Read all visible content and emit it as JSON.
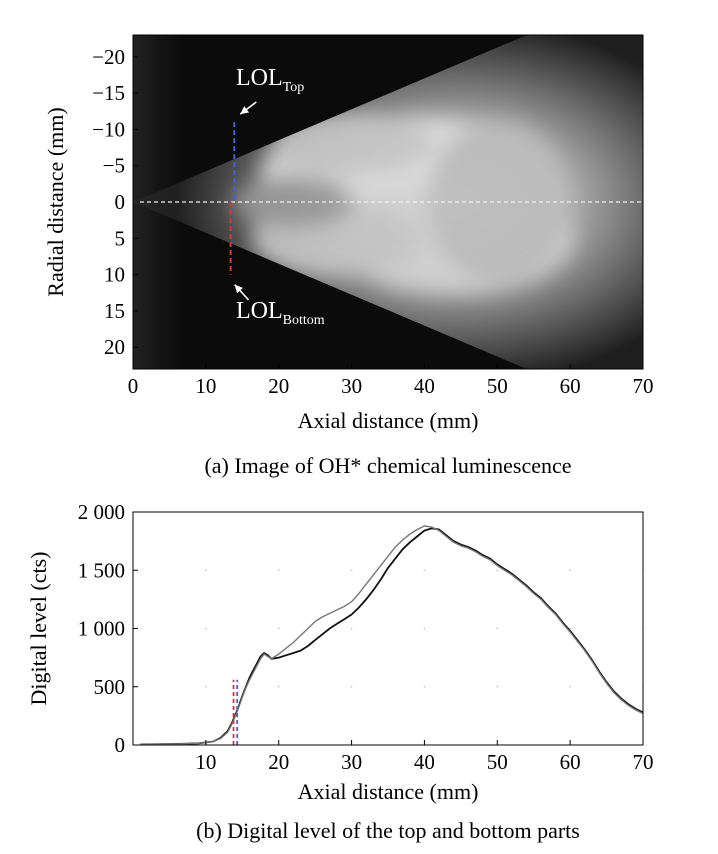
{
  "chart_data": [
    {
      "type": "heatmap",
      "caption": "(a) Image of OH* chemical luminescence",
      "xlabel": "Axial distance (mm)",
      "ylabel": "Radial distance (mm)",
      "xlim": [
        0,
        70
      ],
      "ylim": [
        -23,
        23
      ],
      "y_inverted": true,
      "xticks": [
        "0",
        "10",
        "20",
        "30",
        "40",
        "50",
        "60",
        "70"
      ],
      "yticks": [
        "−20",
        "−15",
        "−10",
        "−5",
        "0",
        "5",
        "10",
        "15",
        "20"
      ],
      "xtick_values": [
        0,
        10,
        20,
        30,
        40,
        50,
        60,
        70
      ],
      "ytick_values": [
        -20,
        -15,
        -10,
        -5,
        0,
        5,
        10,
        15,
        20
      ],
      "spray_cone_edges": {
        "top": [
          [
            0,
            0
          ],
          [
            54,
            -23
          ],
          [
            70,
            -23
          ]
        ],
        "bottom": [
          [
            0,
            0
          ],
          [
            54,
            23
          ],
          [
            70,
            23
          ]
        ]
      },
      "centerline_y": 0,
      "annotations": [
        {
          "label": "LOL",
          "subscript": "Top",
          "x": 13.9,
          "y_from": -11,
          "y_to": 0,
          "color": "#4b5cd6"
        },
        {
          "label": "LOL",
          "subscript": "Bottom",
          "x": 13.4,
          "y_from": 0,
          "y_to": 10,
          "color": "#e33030"
        }
      ]
    },
    {
      "type": "line",
      "caption": "(b) Digital level of the top and bottom parts",
      "xlabel": "Axial distance (mm)",
      "ylabel": "Digital level (cts)",
      "xlim": [
        0,
        70
      ],
      "ylim": [
        0,
        2000
      ],
      "xticks": [
        "10",
        "20",
        "30",
        "40",
        "50",
        "60",
        "70"
      ],
      "yticks": [
        "0",
        "500",
        "1 000",
        "1 500",
        "2 000"
      ],
      "xtick_values": [
        10,
        20,
        30,
        40,
        50,
        60,
        70
      ],
      "ytick_values": [
        0,
        500,
        1000,
        1500,
        2000
      ],
      "series": [
        {
          "color": "#111111",
          "x": [
            1,
            4,
            7,
            9,
            11,
            12,
            13,
            13.5,
            14,
            14.5,
            15,
            15.5,
            16,
            16.5,
            17,
            17.5,
            18,
            18.5,
            19,
            20,
            21,
            22,
            23,
            24,
            25,
            26,
            27,
            28,
            29,
            30,
            31,
            32,
            33,
            34,
            35,
            36,
            37,
            38,
            39,
            40,
            41,
            42,
            43,
            44,
            45,
            46,
            47,
            48,
            49,
            50,
            51,
            52,
            53,
            54,
            55,
            56,
            57,
            58,
            59,
            60,
            61,
            62,
            63,
            64,
            65,
            66,
            67,
            68,
            69,
            70
          ],
          "y": [
            5,
            8,
            10,
            15,
            30,
            60,
            120,
            180,
            250,
            330,
            420,
            500,
            580,
            640,
            700,
            760,
            790,
            770,
            740,
            750,
            770,
            790,
            810,
            850,
            900,
            950,
            1000,
            1040,
            1080,
            1120,
            1180,
            1250,
            1330,
            1420,
            1520,
            1600,
            1680,
            1740,
            1790,
            1840,
            1860,
            1850,
            1800,
            1750,
            1720,
            1700,
            1670,
            1630,
            1600,
            1550,
            1510,
            1470,
            1420,
            1370,
            1310,
            1260,
            1190,
            1130,
            1050,
            980,
            900,
            820,
            730,
            630,
            540,
            460,
            400,
            350,
            310,
            280
          ]
        },
        {
          "color": "#777777",
          "x": [
            1,
            4,
            7,
            9,
            11,
            12,
            13,
            13.5,
            14,
            14.5,
            15,
            15.5,
            16,
            16.5,
            17,
            17.5,
            18,
            18.5,
            19,
            20,
            21,
            22,
            23,
            24,
            25,
            26,
            27,
            28,
            29,
            30,
            31,
            32,
            33,
            34,
            35,
            36,
            37,
            38,
            39,
            40,
            41,
            42,
            43,
            44,
            45,
            46,
            47,
            48,
            49,
            50,
            51,
            52,
            53,
            54,
            55,
            56,
            57,
            58,
            59,
            60,
            61,
            62,
            63,
            64,
            65,
            66,
            67,
            68,
            69,
            70
          ],
          "y": [
            5,
            8,
            10,
            15,
            30,
            55,
            110,
            170,
            240,
            320,
            410,
            490,
            560,
            620,
            680,
            740,
            780,
            760,
            740,
            780,
            830,
            880,
            940,
            1000,
            1060,
            1100,
            1130,
            1160,
            1190,
            1230,
            1300,
            1380,
            1460,
            1540,
            1620,
            1700,
            1760,
            1810,
            1850,
            1880,
            1870,
            1840,
            1790,
            1740,
            1710,
            1690,
            1660,
            1620,
            1590,
            1540,
            1500,
            1460,
            1410,
            1360,
            1300,
            1250,
            1180,
            1120,
            1040,
            970,
            890,
            810,
            720,
            620,
            530,
            450,
            390,
            340,
            300,
            270
          ]
        }
      ],
      "markers": [
        {
          "x": 13.8,
          "y_to": 560,
          "color": "#e33030"
        },
        {
          "x": 14.3,
          "y_to": 560,
          "color": "#4b5cd6"
        }
      ]
    }
  ]
}
